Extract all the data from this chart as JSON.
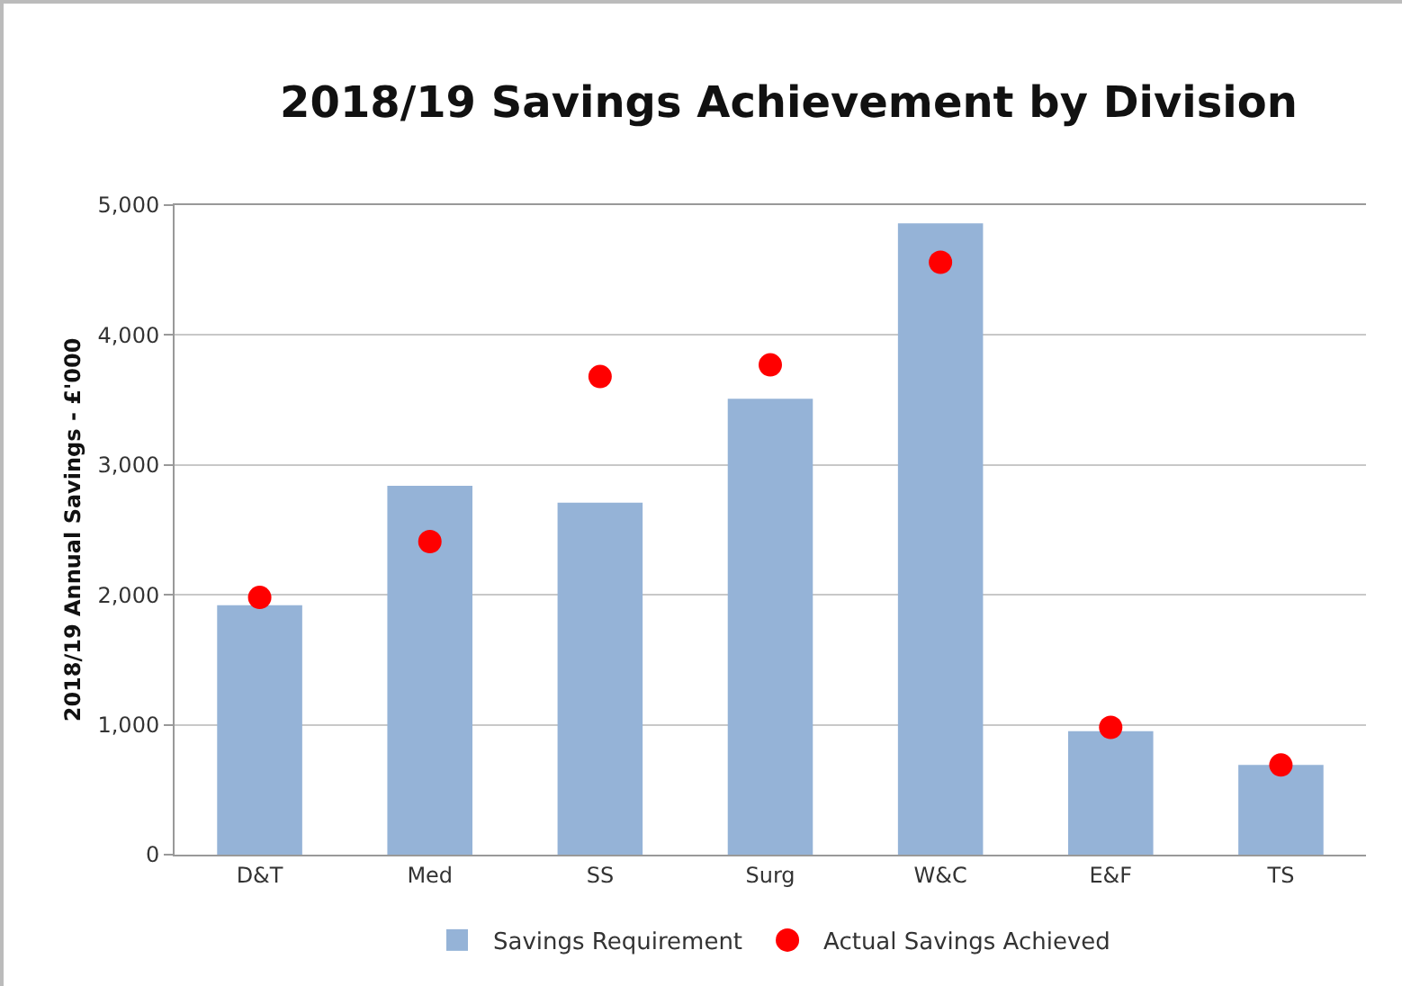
{
  "chart_data": {
    "type": "bar",
    "title": "2018/19 Savings Achievement by Division",
    "ylabel": "2018/19 Annual Savings - £'000",
    "categories": [
      "D&T",
      "Med",
      "SS",
      "Surg",
      "W&C",
      "E&F",
      "TS"
    ],
    "series": [
      {
        "name": "Savings Requirement",
        "color": "#95b3d7",
        "values": [
          1920,
          2840,
          2710,
          3510,
          4860,
          950,
          690
        ]
      },
      {
        "name": "Actual Savings Achieved",
        "type": "scatter",
        "color": "#ff0000",
        "marker": "circle",
        "values": [
          1980,
          2410,
          3680,
          3770,
          4560,
          980,
          690
        ]
      }
    ],
    "ylim": [
      0,
      5000
    ],
    "yticks": [
      0,
      {
        "value": 1000,
        "label": "1,000"
      },
      {
        "value": 2000,
        "label": "2,000"
      },
      {
        "value": 3000,
        "label": "3,000"
      },
      {
        "value": 4000,
        "label": "4,000"
      },
      {
        "value": 5000,
        "label": "5,000"
      }
    ],
    "grid": "y",
    "legend": "bottom"
  }
}
